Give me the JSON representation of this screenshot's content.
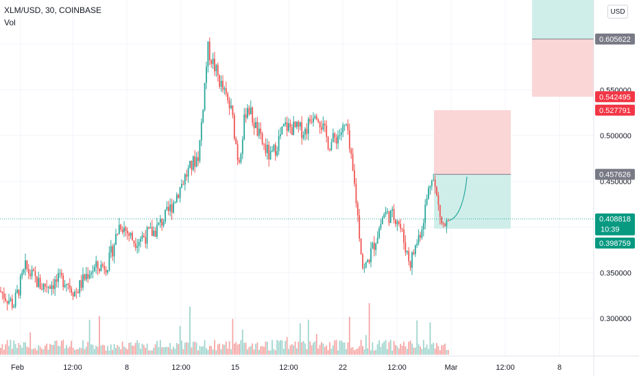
{
  "symbol_title": "XLM/USD, 30, COINBASE",
  "volume_label": "Vol",
  "currency_button": "USD",
  "colors": {
    "up": "#26a69a",
    "down": "#ef5350",
    "vol_up": "#9fd4ce",
    "vol_down": "#f5a6a4",
    "grid": "#f0f3fa",
    "profit_zone": "#cfeeea",
    "loss_zone": "#fbd6d6",
    "price_line": "#26a69a",
    "label_gray": "#787b86",
    "label_red": "#f23645",
    "label_green": "#089981"
  },
  "y_axis": {
    "ticks": [
      "0.550000",
      "0.500000",
      "0.450000",
      "0.350000",
      "0.300000"
    ],
    "price_labels": [
      {
        "text": "0.605622",
        "style": "gray"
      },
      {
        "text": "0.542495",
        "style": "red"
      },
      {
        "text": "0.527791",
        "style": "red"
      },
      {
        "text": "0.457626",
        "style": "gray"
      },
      {
        "text": "0.408818",
        "sub": "10:39",
        "style": "green"
      },
      {
        "text": "0.398759",
        "style": "green"
      }
    ]
  },
  "x_axis": {
    "ticks": [
      "Feb",
      "12:00",
      "8",
      "12:00",
      "15",
      "12:00",
      "22",
      "12:00",
      "Mar",
      "12:00",
      "8"
    ]
  },
  "chart_data": {
    "type": "candlestick",
    "symbol": "XLM/USD",
    "interval": "30",
    "exchange": "COINBASE",
    "current_price": 0.408818,
    "countdown": "10:39",
    "y_range": [
      0.27,
      0.63
    ],
    "price_path": [
      {
        "x": 0,
        "close": 0.33
      },
      {
        "x": 20,
        "close": 0.315
      },
      {
        "x": 37,
        "close": 0.355
      },
      {
        "x": 60,
        "close": 0.335
      },
      {
        "x": 95,
        "close": 0.343
      },
      {
        "x": 110,
        "close": 0.328
      },
      {
        "x": 130,
        "close": 0.352
      },
      {
        "x": 158,
        "close": 0.36
      },
      {
        "x": 175,
        "close": 0.405
      },
      {
        "x": 195,
        "close": 0.385
      },
      {
        "x": 225,
        "close": 0.395
      },
      {
        "x": 245,
        "close": 0.415
      },
      {
        "x": 270,
        "close": 0.455
      },
      {
        "x": 290,
        "close": 0.48
      },
      {
        "x": 303,
        "close": 0.595
      },
      {
        "x": 320,
        "close": 0.56
      },
      {
        "x": 338,
        "close": 0.525
      },
      {
        "x": 348,
        "close": 0.47
      },
      {
        "x": 360,
        "close": 0.535
      },
      {
        "x": 380,
        "close": 0.495
      },
      {
        "x": 395,
        "close": 0.475
      },
      {
        "x": 415,
        "close": 0.51
      },
      {
        "x": 445,
        "close": 0.505
      },
      {
        "x": 460,
        "close": 0.53
      },
      {
        "x": 480,
        "close": 0.49
      },
      {
        "x": 505,
        "close": 0.51
      },
      {
        "x": 518,
        "close": 0.44
      },
      {
        "x": 530,
        "close": 0.35
      },
      {
        "x": 545,
        "close": 0.38
      },
      {
        "x": 560,
        "close": 0.415
      },
      {
        "x": 580,
        "close": 0.41
      },
      {
        "x": 598,
        "close": 0.36
      },
      {
        "x": 615,
        "close": 0.4
      },
      {
        "x": 630,
        "close": 0.46
      },
      {
        "x": 645,
        "close": 0.4
      },
      {
        "x": 655,
        "close": 0.403
      }
    ],
    "positions": [
      {
        "entry": 0.605622,
        "stop": 0.542495
      },
      {
        "entry": 0.457626,
        "stop": 0.527791,
        "target": 0.398759
      }
    ]
  }
}
